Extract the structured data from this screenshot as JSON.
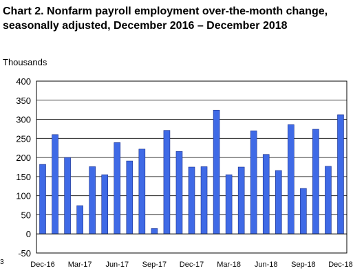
{
  "chart_data": {
    "type": "bar",
    "title_line1": "Chart 2. Nonfarm payroll employment over-the-month change,",
    "title_line2": "seasonally adjusted, December 2016 – December 2018",
    "ylabel": "Thousands",
    "xlabel": "",
    "ylim": [
      -50,
      400
    ],
    "yticks": [
      400,
      350,
      300,
      250,
      200,
      150,
      100,
      50,
      0,
      -50
    ],
    "grid": true,
    "legend": "none",
    "bar_color": "#3f6ae6",
    "categories": [
      "Dec-16",
      "Jan-17",
      "Feb-17",
      "Mar-17",
      "Apr-17",
      "May-17",
      "Jun-17",
      "Jul-17",
      "Aug-17",
      "Sep-17",
      "Oct-17",
      "Nov-17",
      "Dec-17",
      "Jan-18",
      "Feb-18",
      "Mar-18",
      "Apr-18",
      "May-18",
      "Jun-18",
      "Jul-18",
      "Aug-18",
      "Sep-18",
      "Oct-18",
      "Nov-18",
      "Dec-18"
    ],
    "values": [
      182,
      260,
      200,
      74,
      176,
      155,
      239,
      191,
      222,
      14,
      271,
      216,
      175,
      176,
      324,
      155,
      175,
      270,
      208,
      166,
      286,
      119,
      274,
      177,
      312
    ],
    "xtick_labels": [
      {
        "label": "Dec-16",
        "index": 0
      },
      {
        "label": "Mar-17",
        "index": 3
      },
      {
        "label": "Jun-17",
        "index": 6
      },
      {
        "label": "Sep-17",
        "index": 9
      },
      {
        "label": "Dec-17",
        "index": 12
      },
      {
        "label": "Mar-18",
        "index": 15
      },
      {
        "label": "Jun-18",
        "index": 18
      },
      {
        "label": "Sep-18",
        "index": 21
      },
      {
        "label": "Dec-18",
        "index": 24
      }
    ],
    "stray_mark": "3"
  }
}
